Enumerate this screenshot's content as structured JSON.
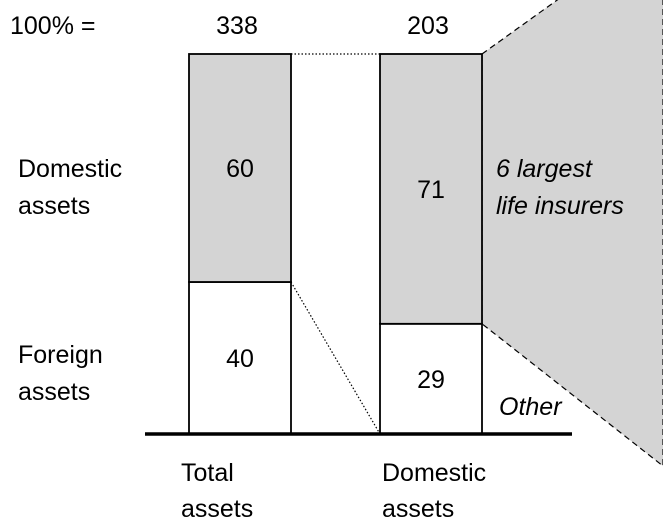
{
  "chart_data": {
    "type": "bar",
    "total_label": "100% =",
    "categories": [
      "Total assets",
      "Domestic assets"
    ],
    "category_lines": [
      [
        "Total",
        "assets"
      ],
      [
        "Domestic",
        "assets"
      ]
    ],
    "totals": [
      "338",
      "203"
    ],
    "bars": [
      {
        "segments": [
          {
            "label": "40",
            "value": 40,
            "color": "#ffffff"
          },
          {
            "label": "60",
            "value": 60,
            "color": "#d4d4d4"
          }
        ]
      },
      {
        "segments": [
          {
            "label": "29",
            "value": 29,
            "color": "#ffffff"
          },
          {
            "label": "71",
            "value": 71,
            "color": "#d4d4d4"
          }
        ]
      }
    ],
    "row_labels": {
      "domestic": [
        "Domestic",
        "assets"
      ],
      "foreign": [
        "Foreign",
        "assets"
      ]
    },
    "annotations": {
      "largest": [
        "6 largest",
        "life insurers"
      ],
      "other": "Other"
    },
    "colors": {
      "filled": "#d4d4d4",
      "empty": "#ffffff",
      "callout": "#d4d4d4"
    }
  }
}
